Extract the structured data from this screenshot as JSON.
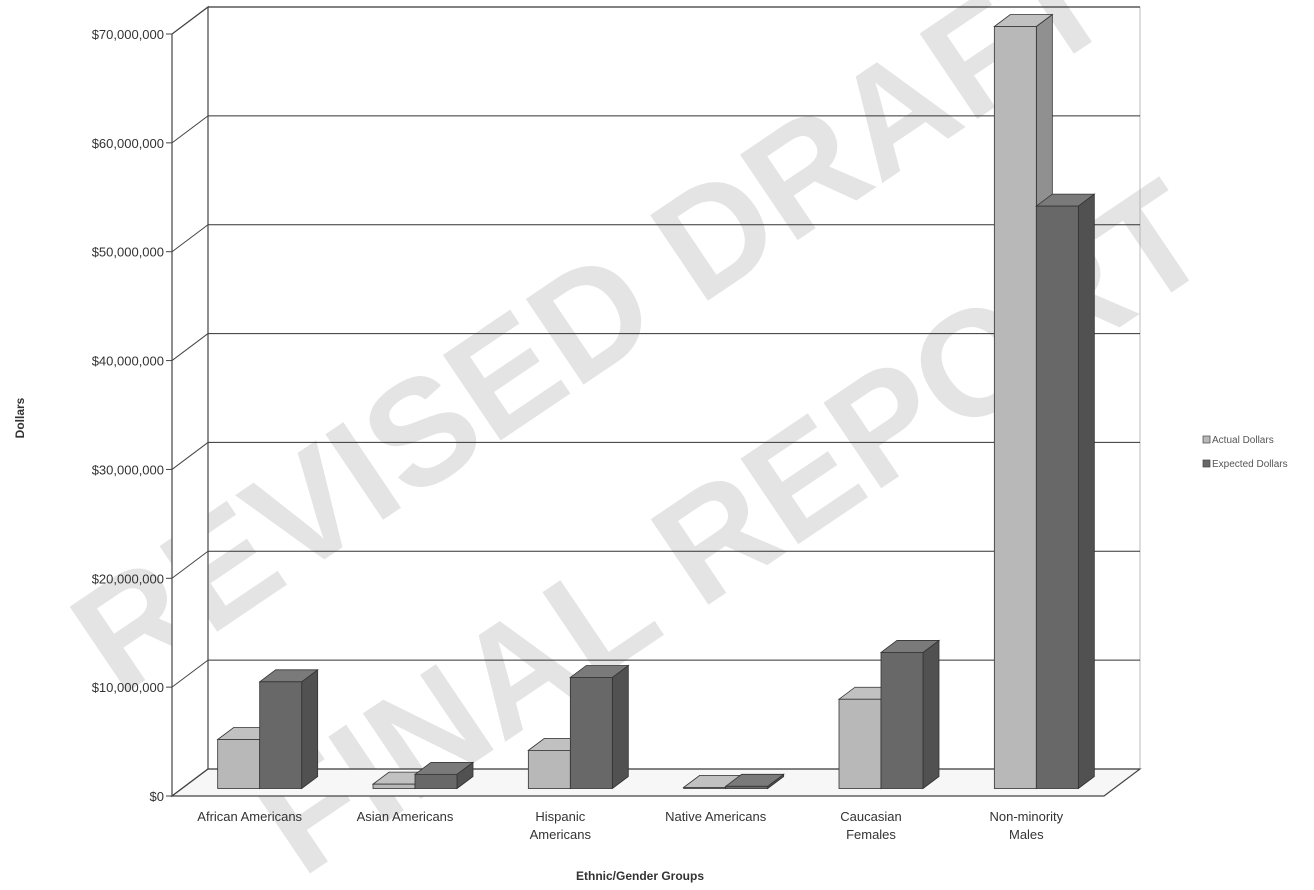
{
  "chart_data": {
    "type": "bar",
    "title": "",
    "xlabel": "Ethnic/Gender Groups",
    "ylabel": "Dollars",
    "categories": [
      "African Americans",
      "Asian Americans",
      "Hispanic Americans",
      "Native Americans",
      "Caucasian Females",
      "Non-minority Males"
    ],
    "category_lines": [
      [
        "African Americans"
      ],
      [
        "Asian Americans"
      ],
      [
        "Hispanic",
        "Americans"
      ],
      [
        "Native Americans"
      ],
      [
        "Caucasian",
        "Females"
      ],
      [
        "Non-minority",
        "Males"
      ]
    ],
    "series": [
      {
        "name": "Actual Dollars",
        "values": [
          4500000,
          400000,
          3500000,
          100000,
          8200000,
          70000000
        ],
        "color": "#b8b8b8"
      },
      {
        "name": "Expected Dollars",
        "values": [
          9800000,
          1300000,
          10200000,
          200000,
          12500000,
          53500000
        ],
        "color": "#686868"
      }
    ],
    "ylim": [
      0,
      70000000
    ],
    "yticks": [
      0,
      10000000,
      20000000,
      30000000,
      40000000,
      50000000,
      60000000,
      70000000
    ],
    "ytick_labels": [
      "$0",
      "$10,000,000",
      "$20,000,000",
      "$30,000,000",
      "$40,000,000",
      "$50,000,000",
      "$60,000,000",
      "$70,000,000"
    ],
    "grid": true,
    "legend_position": "right",
    "style": "3d-clustered-column"
  },
  "watermark": {
    "line1": "REVISED DRAFT",
    "line2": "FINAL REPORT"
  }
}
